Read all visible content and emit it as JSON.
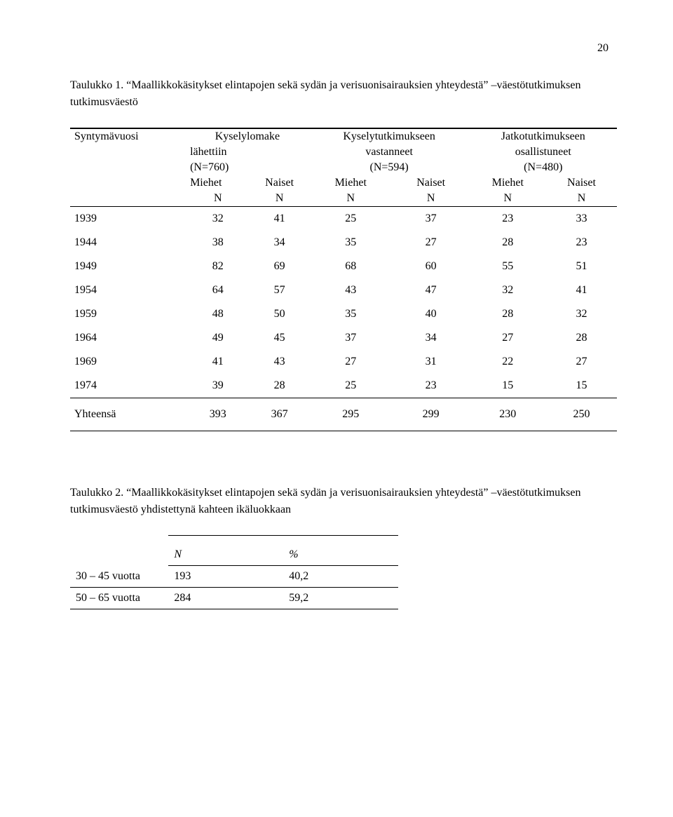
{
  "page_number": "20",
  "table1": {
    "caption_prefix": "Taulukko 1. ",
    "caption_quoted": "Maallikkokäsitykset elintapojen sekä sydän ja verisuonisairauksien yhteydestä",
    "caption_suffix": " –väestötutkimuksen tutkimusväestö",
    "head": {
      "c0": "Syntymävuosi",
      "g1a": "Kyselylomake",
      "g1b": "lähettiin",
      "g1c": "(N=760)",
      "g2a": "Kyselytutkimukseen",
      "g2b": "vastanneet",
      "g2c": "(N=594)",
      "g3a": "Jatkotutkimukseen",
      "g3b": "osallistuneet",
      "g3c": "(N=480)",
      "m": "Miehet",
      "n": "Naiset",
      "nn": "N"
    },
    "rows": [
      {
        "y": "1939",
        "a": "32",
        "b": "41",
        "c": "25",
        "d": "37",
        "e": "23",
        "f": "33"
      },
      {
        "y": "1944",
        "a": "38",
        "b": "34",
        "c": "35",
        "d": "27",
        "e": "28",
        "f": "23"
      },
      {
        "y": "1949",
        "a": "82",
        "b": "69",
        "c": "68",
        "d": "60",
        "e": "55",
        "f": "51"
      },
      {
        "y": "1954",
        "a": "64",
        "b": "57",
        "c": "43",
        "d": "47",
        "e": "32",
        "f": "41"
      },
      {
        "y": "1959",
        "a": "48",
        "b": "50",
        "c": "35",
        "d": "40",
        "e": "28",
        "f": "32"
      },
      {
        "y": "1964",
        "a": "49",
        "b": "45",
        "c": "37",
        "d": "34",
        "e": "27",
        "f": "28"
      },
      {
        "y": "1969",
        "a": "41",
        "b": "43",
        "c": "27",
        "d": "31",
        "e": "22",
        "f": "27"
      },
      {
        "y": "1974",
        "a": "39",
        "b": "28",
        "c": "25",
        "d": "23",
        "e": "15",
        "f": "15"
      }
    ],
    "totals": {
      "label": "Yhteensä",
      "a": "393",
      "b": "367",
      "c": "295",
      "d": "299",
      "e": "230",
      "f": "250"
    }
  },
  "table2": {
    "caption_prefix": "Taulukko 2. ",
    "caption_quoted": "Maallikkokäsitykset elintapojen sekä sydän ja verisuonisairauksien yhteydestä",
    "caption_suffix": " –väestötutkimuksen tutkimusväestö yhdistettynä kahteen ikäluokkaan",
    "head": {
      "n": "N",
      "pct": "%"
    },
    "rows": [
      {
        "label": "30 – 45 vuotta",
        "n": "193",
        "pct": "40,2"
      },
      {
        "label": "50 – 65 vuotta",
        "n": "284",
        "pct": "59,2"
      }
    ]
  }
}
